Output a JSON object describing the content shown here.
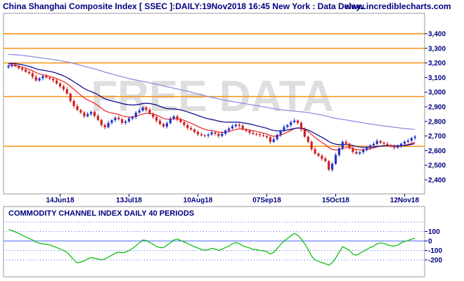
{
  "header": {
    "title": "China Shanghai Composite Index [ SSEC ]:DAILY:19Nov2018 16:45 New York : Data Delay..",
    "site": "www.incrediblecharts.com"
  },
  "watermark": "FREE DATA",
  "colors": {
    "up": "#2233cc",
    "down": "#cc2222",
    "ema_fast": "#ee2222",
    "ema_mid": "#000088",
    "ema_slow": "#8888dd",
    "hline": "#ff8800",
    "cci": "#00bb00",
    "cci_zero": "#4466ff",
    "axis_text": "#000080"
  },
  "chart_data": [
    {
      "type": "candlestick",
      "title": "China Shanghai Composite Index [ SSEC ]:DAILY:19Nov2018 16:45 New York : Data Delay..",
      "ylim": [
        2380,
        3480
      ],
      "y_ticks": [
        3400,
        3300,
        3200,
        3100,
        3000,
        2900,
        2800,
        2700,
        2600,
        2500,
        2400
      ],
      "y_tick_labels": [
        "3,400",
        "3,300",
        "3,200",
        "3,100",
        "3,000",
        "2,900",
        "2,800",
        "2,700",
        "2,600",
        "2,500",
        "2,400"
      ],
      "x_labels": [
        {
          "label": "14Jun18",
          "index": 15
        },
        {
          "label": "13Jul18",
          "index": 35
        },
        {
          "label": "10Aug18",
          "index": 55
        },
        {
          "label": "07Sep18",
          "index": 75
        },
        {
          "label": "15Oct18",
          "index": 95
        },
        {
          "label": "12Nov18",
          "index": 115
        }
      ],
      "horizontal_lines": [
        3400,
        3300,
        3200,
        2970,
        2630
      ],
      "closes": [
        3180,
        3190,
        3178,
        3165,
        3155,
        3140,
        3130,
        3105,
        3080,
        3095,
        3110,
        3100,
        3092,
        3080,
        3060,
        3040,
        3020,
        2990,
        2940,
        2905,
        2878,
        2860,
        2835,
        2850,
        2865,
        2838,
        2810,
        2775,
        2760,
        2790,
        2808,
        2825,
        2815,
        2790,
        2800,
        2820,
        2830,
        2860,
        2875,
        2895,
        2880,
        2852,
        2830,
        2805,
        2782,
        2765,
        2788,
        2818,
        2835,
        2812,
        2795,
        2775,
        2755,
        2745,
        2728,
        2712,
        2705,
        2702,
        2710,
        2725,
        2715,
        2700,
        2716,
        2738,
        2752,
        2768,
        2778,
        2770,
        2745,
        2735,
        2722,
        2715,
        2712,
        2706,
        2700,
        2692,
        2660,
        2678,
        2708,
        2733,
        2762,
        2775,
        2795,
        2806,
        2790,
        2745,
        2695,
        2660,
        2610,
        2580,
        2565,
        2545,
        2528,
        2470,
        2510,
        2570,
        2616,
        2660,
        2647,
        2618,
        2592,
        2580,
        2589,
        2604,
        2618,
        2636,
        2646,
        2666,
        2654,
        2647,
        2638,
        2631,
        2620,
        2629,
        2647,
        2660,
        2668,
        2686,
        2696
      ],
      "series": [
        {
          "name": "",
          "values": [
            3185,
            3184,
            3182,
            3178,
            3172,
            3164,
            3156,
            3146,
            3134,
            3125,
            3119,
            3114,
            3108,
            3102,
            3093,
            3083,
            3072,
            3058,
            3040,
            3020,
            3000,
            2980,
            2960,
            2946,
            2936,
            2923,
            2908,
            2890,
            2873,
            2863,
            2857,
            2853,
            2847,
            2838,
            2832,
            2830,
            2830,
            2835,
            2842,
            2851,
            2856,
            2855,
            2851,
            2843,
            2832,
            2820,
            2815,
            2816,
            2819,
            2818,
            2814,
            2807,
            2797,
            2788,
            2777,
            2765,
            2755,
            2746,
            2740,
            2737,
            2733,
            2727,
            2724,
            2726,
            2731,
            2738,
            2745,
            2749,
            2748,
            2745,
            2741,
            2736,
            2731,
            2726,
            2720,
            2714,
            2703,
            2698,
            2700,
            2706,
            2716,
            2726,
            2738,
            2750,
            2756,
            2754,
            2743,
            2730,
            2711,
            2690,
            2673,
            2656,
            2641,
            2620,
            2609,
            2604,
            2606,
            2615,
            2620,
            2620,
            2615,
            2609,
            2605,
            2605,
            2607,
            2612,
            2618,
            2626,
            2630,
            2633,
            2634,
            2633,
            2630,
            2630,
            2632,
            2637,
            2642,
            2650,
            2659
          ]
        },
        {
          "name": "",
          "values": [
            3195,
            3196,
            3195,
            3192,
            3188,
            3182,
            3177,
            3169,
            3160,
            3154,
            3150,
            3146,
            3142,
            3137,
            3130,
            3121,
            3112,
            3100,
            3086,
            3071,
            3056,
            3041,
            3025,
            3013,
            3004,
            2994,
            2982,
            2968,
            2955,
            2946,
            2940,
            2935,
            2929,
            2922,
            2917,
            2914,
            2912,
            2914,
            2917,
            2922,
            2924,
            2922,
            2918,
            2912,
            2903,
            2894,
            2888,
            2886,
            2886,
            2883,
            2879,
            2872,
            2865,
            2857,
            2849,
            2840,
            2832,
            2824,
            2818,
            2813,
            2808,
            2802,
            2797,
            2795,
            2794,
            2794,
            2795,
            2794,
            2791,
            2787,
            2782,
            2777,
            2771,
            2765,
            2759,
            2753,
            2744,
            2738,
            2735,
            2735,
            2737,
            2741,
            2746,
            2752,
            2755,
            2754,
            2749,
            2741,
            2730,
            2717,
            2704,
            2691,
            2678,
            2662,
            2651,
            2644,
            2641,
            2642,
            2642,
            2639,
            2635,
            2629,
            2625,
            2622,
            2622,
            2623,
            2625,
            2629,
            2631,
            2633,
            2633,
            2633,
            2632,
            2632,
            2633,
            2635,
            2638,
            2643,
            2648
          ]
        },
        {
          "name": "",
          "values": [
            3258,
            3257,
            3256,
            3254,
            3252,
            3249,
            3246,
            3243,
            3239,
            3236,
            3233,
            3230,
            3227,
            3223,
            3220,
            3216,
            3211,
            3207,
            3202,
            3196,
            3190,
            3184,
            3177,
            3171,
            3165,
            3159,
            3152,
            3145,
            3137,
            3131,
            3125,
            3118,
            3112,
            3105,
            3099,
            3093,
            3088,
            3083,
            3078,
            3074,
            3069,
            3064,
            3059,
            3054,
            3048,
            3042,
            3037,
            3032,
            3027,
            3022,
            3017,
            3011,
            3006,
            3000,
            2994,
            2988,
            2982,
            2976,
            2970,
            2965,
            2960,
            2954,
            2949,
            2944,
            2940,
            2936,
            2932,
            2928,
            2924,
            2920,
            2916,
            2912,
            2908,
            2904,
            2900,
            2896,
            2891,
            2887,
            2883,
            2880,
            2877,
            2874,
            2872,
            2870,
            2868,
            2866,
            2863,
            2860,
            2856,
            2852,
            2848,
            2843,
            2838,
            2832,
            2826,
            2821,
            2817,
            2813,
            2810,
            2806,
            2802,
            2798,
            2794,
            2790,
            2786,
            2782,
            2779,
            2776,
            2772,
            2769,
            2766,
            2763,
            2760,
            2757,
            2754,
            2751,
            2749,
            2747,
            2745
          ]
        }
      ]
    },
    {
      "type": "line",
      "title": "COMMODITY CHANNEL INDEX DAILY 40 PERIODS",
      "ylim": [
        -260,
        200
      ],
      "y_ticks": [
        100,
        0,
        -100,
        -200
      ],
      "y_tick_labels": [
        "100",
        "0",
        "-100",
        "-200"
      ],
      "dotted_levels": [
        200,
        100,
        -100,
        -200
      ],
      "zero_level": 0,
      "series": [
        {
          "name": "",
          "values": [
            120,
            112,
            95,
            80,
            60,
            42,
            28,
            10,
            -10,
            -25,
            -30,
            -35,
            -42,
            -55,
            -70,
            -85,
            -100,
            -120,
            -160,
            -200,
            -230,
            -222,
            -210,
            -190,
            -175,
            -182,
            -190,
            -200,
            -190,
            -170,
            -150,
            -130,
            -118,
            -125,
            -118,
            -100,
            -80,
            -50,
            -20,
            10,
            5,
            -15,
            -35,
            -60,
            -70,
            -72,
            -45,
            -20,
            10,
            20,
            5,
            -10,
            -25,
            -45,
            -60,
            -75,
            -90,
            -100,
            -92,
            -78,
            -85,
            -100,
            -88,
            -70,
            -52,
            -30,
            -15,
            -30,
            -50,
            -62,
            -75,
            -88,
            -92,
            -100,
            -105,
            -112,
            -138,
            -120,
            -80,
            -40,
            0,
            25,
            55,
            80,
            60,
            20,
            -30,
            -90,
            -160,
            -200,
            -215,
            -228,
            -240,
            -255,
            -230,
            -180,
            -120,
            -60,
            -80,
            -100,
            -140,
            -150,
            -130,
            -110,
            -90,
            -70,
            -55,
            -30,
            -20,
            -25,
            -40,
            -50,
            -55,
            -45,
            -20,
            -5,
            5,
            20,
            30
          ]
        }
      ]
    }
  ]
}
